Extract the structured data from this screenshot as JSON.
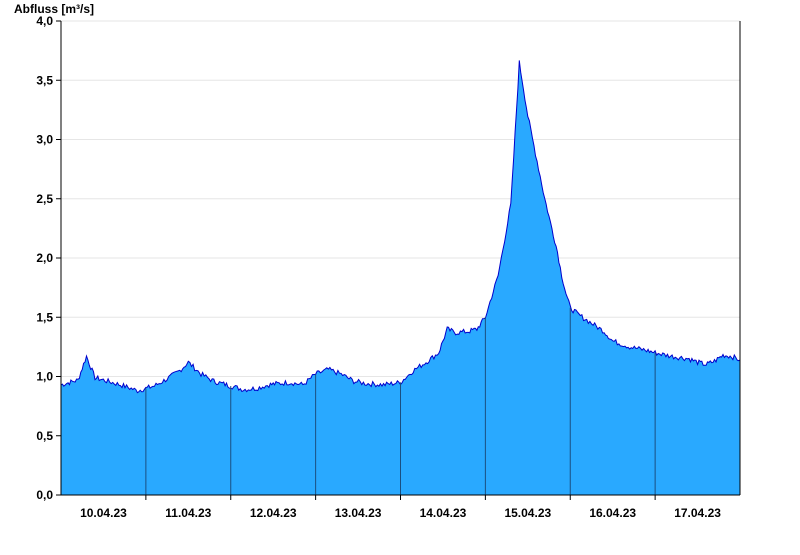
{
  "chart_data": {
    "type": "area",
    "title": "",
    "ylabel": "Abfluss [m³/s]",
    "xlabel": "",
    "ylim": [
      0,
      4.0
    ],
    "y_ticks": [
      "0,0",
      "0,5",
      "1,0",
      "1,5",
      "2,0",
      "2,5",
      "3,0",
      "3,5",
      "4,0"
    ],
    "y_tick_values": [
      0,
      0.5,
      1.0,
      1.5,
      2.0,
      2.5,
      3.0,
      3.5,
      4.0
    ],
    "x_tick_labels": [
      "10.04.23",
      "11.04.23",
      "12.04.23",
      "13.04.23",
      "14.04.23",
      "15.04.23",
      "16.04.23",
      "17.04.23"
    ],
    "x_range_days": [
      9.5,
      17.5
    ],
    "grid": "horizontal",
    "fill_color": "#29a9ff",
    "line_color": "#0000cc",
    "series": [
      {
        "x": [
          9.5,
          9.6,
          9.7,
          9.8,
          9.9,
          10.0,
          10.2,
          10.4,
          10.5,
          10.6,
          10.75,
          10.9,
          11.0,
          11.15,
          11.3,
          11.4,
          11.5,
          11.65,
          11.8,
          11.95,
          12.05,
          12.2,
          12.35,
          12.5,
          12.65,
          12.8,
          12.95,
          13.1,
          13.3,
          13.5,
          13.65,
          13.8,
          13.95,
          14.05,
          14.15,
          14.3,
          14.4,
          14.5,
          14.65,
          14.8,
          14.9,
          15.0,
          15.2,
          15.3,
          15.35,
          15.4,
          15.45,
          15.5,
          15.6,
          15.75,
          15.9,
          16.0,
          16.2,
          16.4,
          16.5,
          16.7,
          16.9,
          17.0,
          17.1,
          17.2,
          17.3,
          17.4,
          17.5
        ],
        "y": [
          0.93,
          0.95,
          0.97,
          1.17,
          0.99,
          0.97,
          0.93,
          0.88,
          0.9,
          0.92,
          0.98,
          1.05,
          1.12,
          1.02,
          0.96,
          0.94,
          0.92,
          0.89,
          0.9,
          0.93,
          0.94,
          0.95,
          0.93,
          1.02,
          1.06,
          1.02,
          0.96,
          0.94,
          0.93,
          0.95,
          1.05,
          1.12,
          1.2,
          1.4,
          1.37,
          1.38,
          1.4,
          1.5,
          1.85,
          2.45,
          3.65,
          3.2,
          2.5,
          2.2,
          2.05,
          1.85,
          1.7,
          1.58,
          1.52,
          1.45,
          1.38,
          1.3,
          1.25,
          1.22,
          1.2,
          1.17,
          1.15,
          1.12,
          1.1,
          1.13,
          1.18,
          1.17,
          1.14
        ]
      }
    ]
  }
}
